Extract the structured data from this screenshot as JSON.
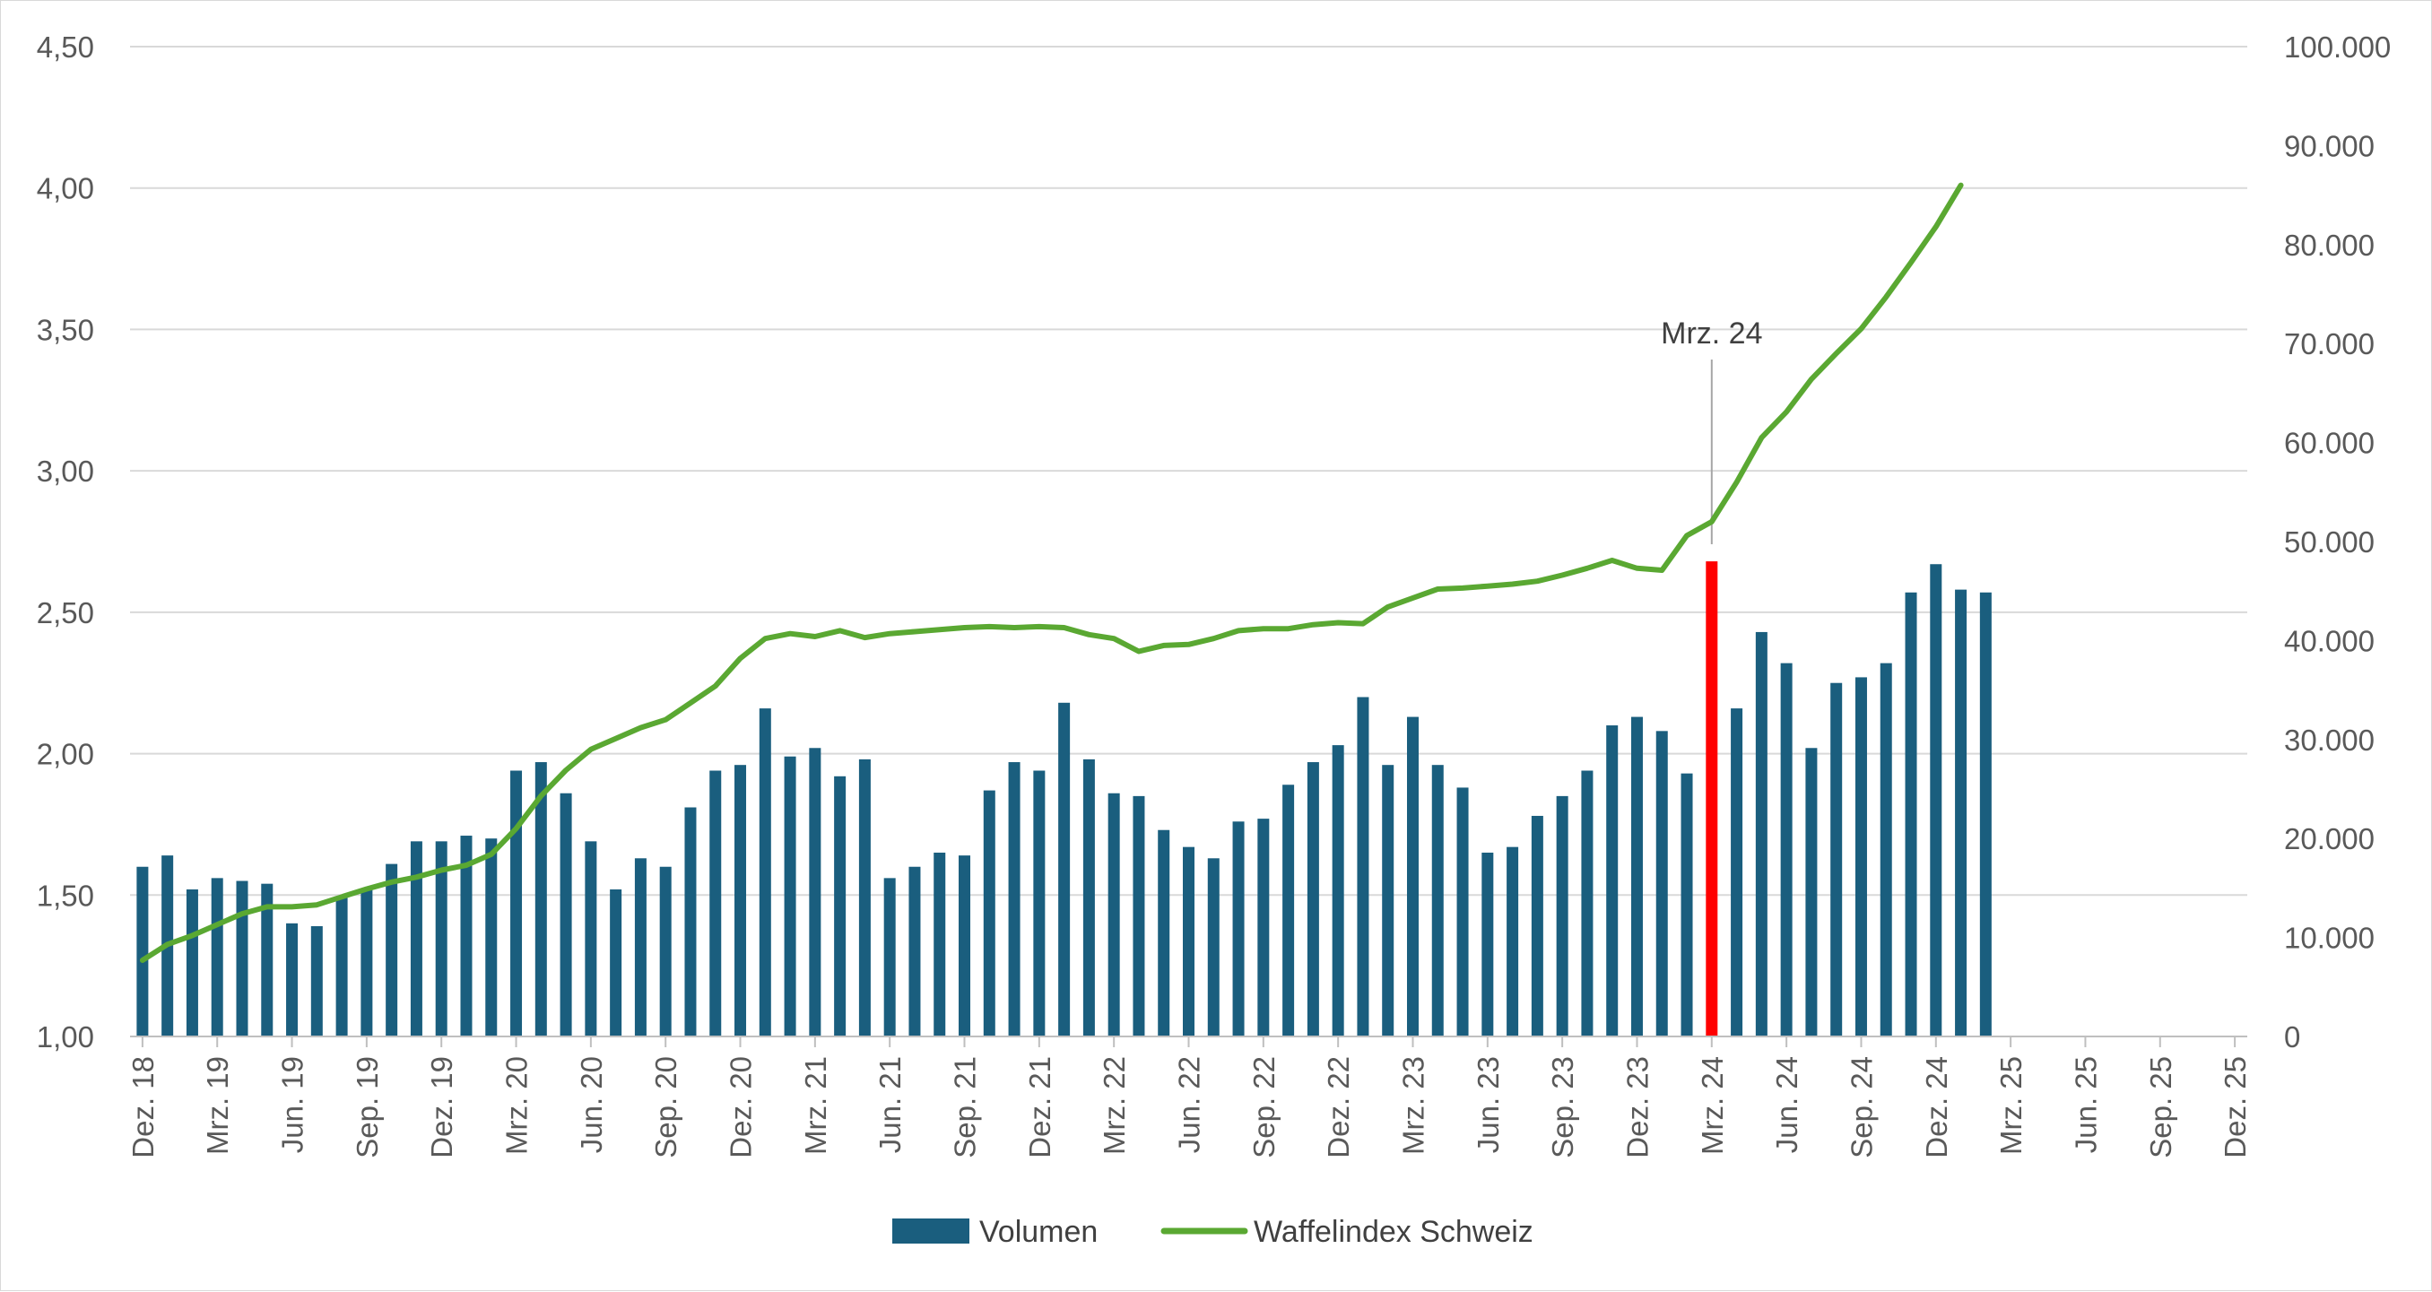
{
  "chart_data": {
    "type": "bar",
    "colors": {
      "bar": "#1a5e7e",
      "highlight": "#ff0000",
      "line": "#5aa832",
      "grid": "#d9d9d9",
      "axis": "#bfbfbf",
      "text": "#595959"
    },
    "x_axis": {
      "first_month": "Dez. 18",
      "tick_labels": [
        "Dez. 18",
        "Mrz. 19",
        "Jun. 19",
        "Sep. 19",
        "Dez. 19",
        "Mrz. 20",
        "Jun. 20",
        "Sep. 20",
        "Dez. 20",
        "Mrz. 21",
        "Jun. 21",
        "Sep. 21",
        "Dez. 21",
        "Mrz. 22",
        "Jun. 22",
        "Sep. 22",
        "Dez. 22",
        "Mrz. 23",
        "Jun. 23",
        "Sep. 23",
        "Dez. 23",
        "Mrz. 24",
        "Jun. 24",
        "Sep. 24",
        "Dez. 24",
        "Mrz. 25",
        "Jun. 25",
        "Sep. 25",
        "Dez. 25"
      ]
    },
    "y_left": {
      "min": 1.0,
      "max": 4.5,
      "ticks": [
        "1,00",
        "1,50",
        "2,00",
        "2,50",
        "3,00",
        "3,50",
        "4,00",
        "4,50"
      ]
    },
    "y_right": {
      "min": 0,
      "max": 100000,
      "ticks": [
        "0",
        "10.000",
        "20.000",
        "30.000",
        "40.000",
        "50.000",
        "60.000",
        "70.000",
        "80.000",
        "90.000",
        "100.000"
      ]
    },
    "series": [
      {
        "name": "Volumen",
        "type": "bar",
        "axis": "left",
        "highlight_index": 63,
        "values": [
          1.6,
          1.64,
          1.52,
          1.56,
          1.55,
          1.54,
          1.4,
          1.39,
          1.49,
          1.52,
          1.61,
          1.69,
          1.69,
          1.71,
          1.7,
          1.94,
          1.97,
          1.86,
          1.69,
          1.52,
          1.63,
          1.6,
          1.81,
          1.94,
          1.96,
          2.16,
          1.99,
          2.02,
          1.92,
          1.98,
          1.56,
          1.6,
          1.65,
          1.64,
          1.87,
          1.97,
          1.94,
          2.18,
          1.98,
          1.86,
          1.85,
          1.73,
          1.67,
          1.63,
          1.76,
          1.77,
          1.89,
          1.97,
          2.03,
          2.2,
          1.96,
          2.13,
          1.96,
          1.88,
          1.65,
          1.67,
          1.78,
          1.85,
          1.94,
          2.1,
          2.13,
          2.08,
          1.93,
          2.68,
          2.16,
          2.43,
          2.32,
          2.02,
          2.25,
          2.27,
          2.32,
          2.57,
          2.67,
          2.58,
          2.57
        ]
      },
      {
        "name": "Waffelindex Schweiz",
        "type": "line",
        "axis": "right",
        "values": [
          7700,
          9300,
          10200,
          11300,
          12400,
          13100,
          13100,
          13300,
          14100,
          14900,
          15600,
          16100,
          16800,
          17300,
          18400,
          21000,
          24300,
          26900,
          29000,
          30100,
          31200,
          32000,
          33700,
          35400,
          38200,
          40200,
          40700,
          40400,
          41000,
          40300,
          40700,
          40900,
          41100,
          41300,
          41400,
          41300,
          41400,
          41300,
          40600,
          40200,
          38900,
          39500,
          39600,
          40200,
          41000,
          41200,
          41200,
          41600,
          41800,
          41700,
          43400,
          44300,
          45200,
          45300,
          45500,
          45700,
          46000,
          46600,
          47300,
          48100,
          47300,
          47100,
          50600,
          52000,
          56000,
          60500,
          63100,
          66400,
          69000,
          71500,
          74700,
          78200,
          81800,
          86000
        ]
      }
    ],
    "annotation": {
      "label": "Mrz. 24",
      "index": 63
    },
    "legend": {
      "position": "bottom",
      "items": [
        "Volumen",
        "Waffelindex Schweiz"
      ]
    }
  }
}
